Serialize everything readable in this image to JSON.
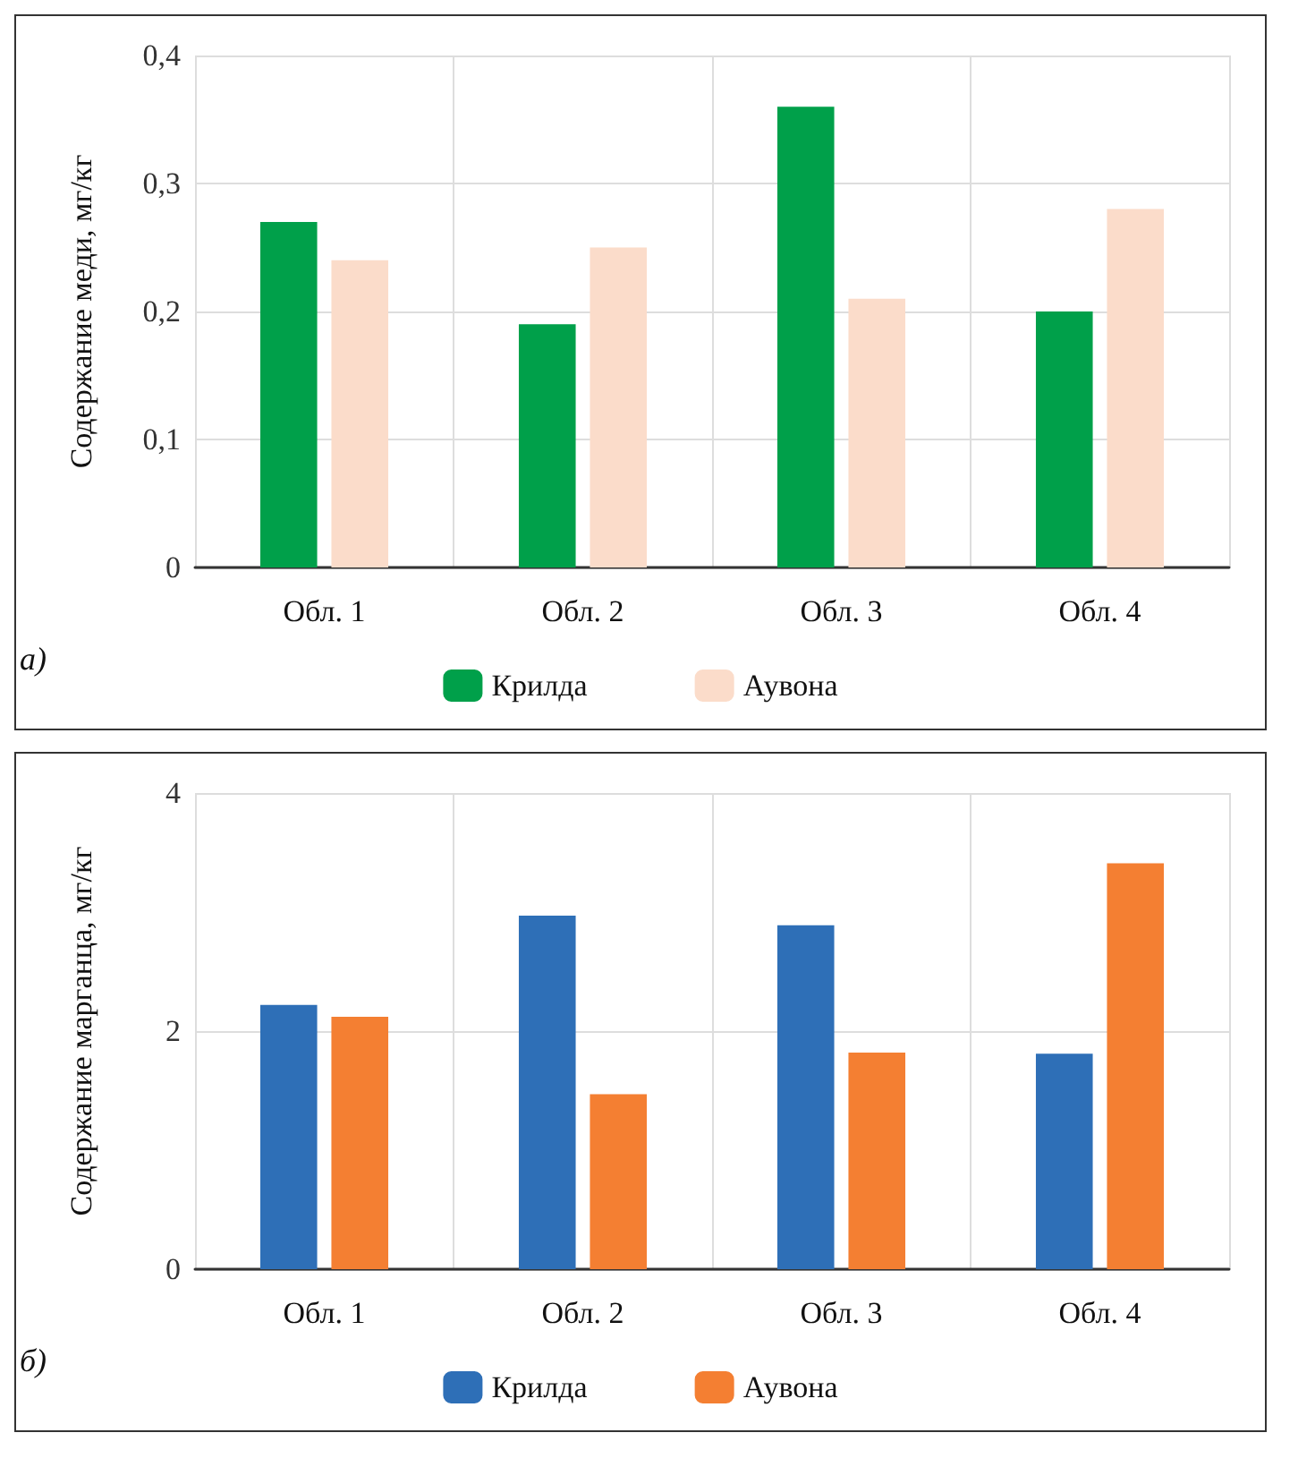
{
  "chart_data": [
    {
      "type": "bar",
      "ylabel": "Содержание меди, мг/кг",
      "categories": [
        "Обл. 1",
        "Обл. 2",
        "Обл. 3",
        "Обл. 4"
      ],
      "series": [
        {
          "name": "Крилда",
          "color": "#00a04a",
          "values": [
            0.27,
            0.19,
            0.36,
            0.2
          ]
        },
        {
          "name": "Аувона",
          "color": "#fbdcca",
          "values": [
            0.24,
            0.25,
            0.21,
            0.28
          ]
        }
      ],
      "ylim": [
        0,
        0.4
      ],
      "yticks": [
        0,
        {
          "value": 0.1,
          "label": "0,1"
        },
        {
          "value": 0.2,
          "label": "0,2"
        },
        {
          "value": 0.3,
          "label": "0,3"
        },
        {
          "value": 0.4,
          "label": "0,4"
        }
      ],
      "grid": true,
      "legend": "bottom",
      "annotations": [
        "а)"
      ]
    },
    {
      "type": "bar",
      "ylabel": "Содержание марганца, мг/кг",
      "categories": [
        "Обл. 1",
        "Обл. 2",
        "Обл. 3",
        "Обл. 4"
      ],
      "series": [
        {
          "name": "Крилда",
          "color": "#2e6fb7",
          "values": [
            2.22,
            2.97,
            2.89,
            1.81
          ]
        },
        {
          "name": "Аувона",
          "color": "#f47f32",
          "values": [
            2.12,
            1.47,
            1.82,
            3.41
          ]
        }
      ],
      "ylim": [
        0,
        4
      ],
      "yticks": [
        0,
        2,
        4
      ],
      "grid": true,
      "legend": "bottom",
      "annotations": [
        "б)"
      ]
    }
  ]
}
